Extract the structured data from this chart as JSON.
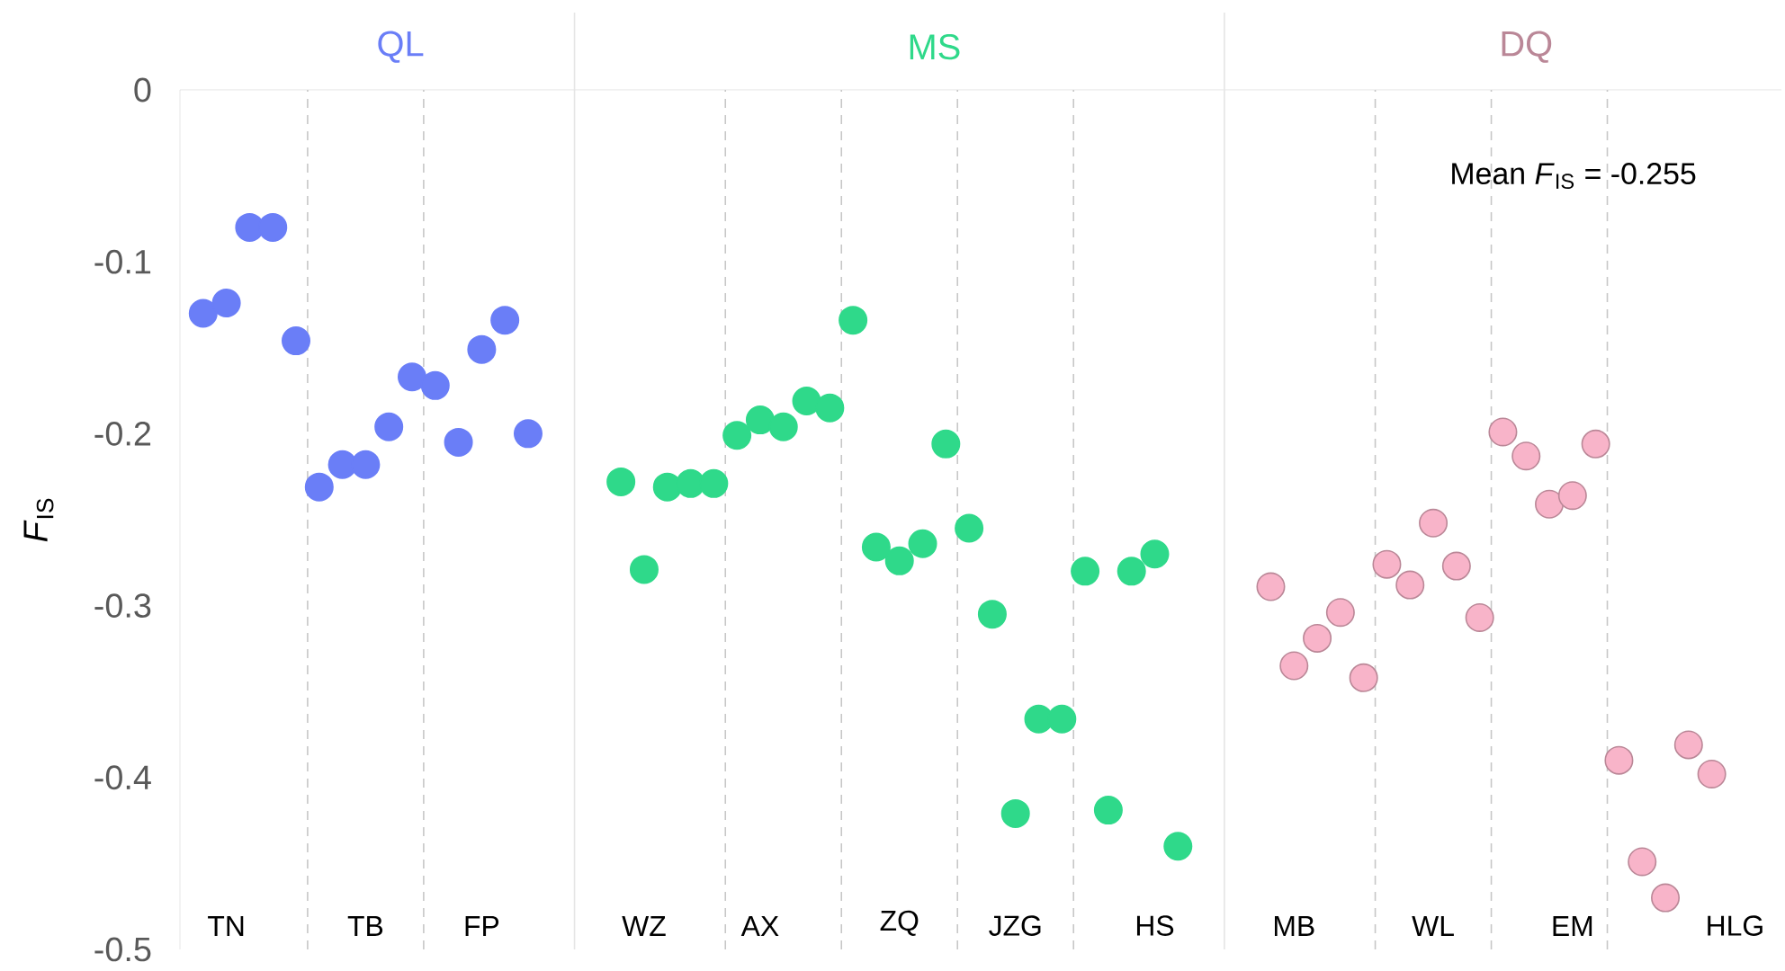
{
  "chart_data": {
    "type": "scatter",
    "ylabel": "*F*$_{IS}$",
    "ylim": [
      -0.5,
      0
    ],
    "yticks": [
      -0.5,
      -0.4,
      -0.3,
      -0.2,
      -0.1,
      0
    ],
    "marker": "circle",
    "categories": [
      null,
      "TN",
      null,
      null,
      null,
      null,
      null,
      "TB",
      null,
      null,
      null,
      null,
      "FP",
      null,
      null,
      null,
      null,
      null,
      null,
      "WZ",
      null,
      null,
      null,
      null,
      "AX",
      null,
      null,
      null,
      null,
      null,
      "ZQ",
      null,
      null,
      null,
      null,
      "JZG",
      null,
      null,
      null,
      null,
      null,
      "HS",
      null,
      null,
      null,
      null,
      null,
      "MB",
      null,
      null,
      null,
      null,
      null,
      "WL",
      null,
      null,
      null,
      null,
      null,
      "EM",
      null,
      null,
      null,
      null,
      null,
      null,
      "HLG",
      null
    ],
    "series": [
      {
        "name": "QL",
        "color": "#6a7ef7",
        "values": [
          -0.13,
          -0.124,
          -0.08,
          -0.08,
          -0.146,
          -0.231,
          -0.218,
          -0.218,
          -0.196,
          -0.167,
          -0.172,
          -0.205,
          -0.151,
          -0.134,
          -0.2,
          null,
          null,
          null,
          null,
          null,
          null,
          null,
          null,
          null,
          null,
          null,
          null,
          null,
          null,
          null,
          null,
          null,
          null,
          null,
          null,
          null,
          null,
          null,
          null,
          null,
          null,
          null,
          null,
          null,
          null,
          null,
          null,
          null,
          null,
          null,
          null,
          null,
          null,
          null,
          null,
          null,
          null,
          null,
          null,
          null,
          null,
          null,
          null,
          null,
          null,
          null,
          null,
          null
        ]
      },
      {
        "name": "MS",
        "color": "#2fd98a",
        "values": [
          null,
          null,
          null,
          null,
          null,
          null,
          null,
          null,
          null,
          null,
          null,
          null,
          null,
          null,
          null,
          null,
          null,
          null,
          -0.228,
          -0.279,
          -0.231,
          -0.229,
          -0.229,
          -0.201,
          -0.192,
          -0.196,
          -0.181,
          -0.185,
          -0.134,
          -0.266,
          -0.274,
          -0.264,
          -0.206,
          -0.255,
          -0.305,
          -0.421,
          -0.366,
          -0.366,
          -0.28,
          -0.419,
          -0.28,
          -0.27,
          -0.44,
          null,
          null,
          null,
          null,
          null,
          null,
          null,
          null,
          null,
          null,
          null,
          null,
          null,
          null,
          null,
          null,
          null,
          null,
          null,
          null,
          null,
          null,
          null,
          null,
          null
        ]
      },
      {
        "name": "DQ",
        "color": "#f8b4c9",
        "values": [
          null,
          null,
          null,
          null,
          null,
          null,
          null,
          null,
          null,
          null,
          null,
          null,
          null,
          null,
          null,
          null,
          null,
          null,
          null,
          null,
          null,
          null,
          null,
          null,
          null,
          null,
          null,
          null,
          null,
          null,
          null,
          null,
          null,
          null,
          null,
          null,
          null,
          null,
          null,
          null,
          null,
          null,
          null,
          null,
          null,
          null,
          -0.289,
          -0.335,
          -0.319,
          -0.304,
          -0.342,
          -0.276,
          -0.288,
          -0.252,
          -0.277,
          -0.307,
          -0.199,
          -0.213,
          -0.241,
          -0.236,
          -0.206,
          -0.39,
          -0.449,
          -0.47,
          -0.381,
          -0.398,
          null,
          null
        ]
      }
    ],
    "annotations": [
      "Mean *F*$_{IS}$ = -0.255"
    ]
  }
}
